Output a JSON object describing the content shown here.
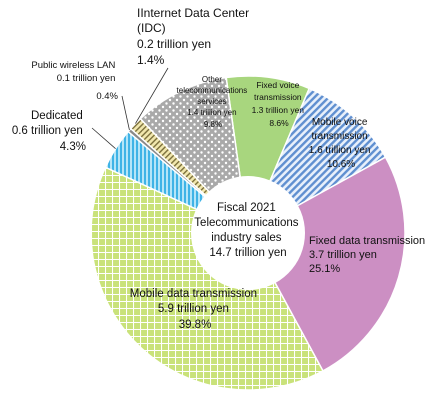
{
  "chart_data": {
    "type": "pie",
    "style": "donut",
    "center_label": [
      "Fiscal 2021",
      "Telecommunications",
      "industry sales",
      "14.7 trillion yen"
    ],
    "slices": [
      {
        "id": "fixed-voice",
        "lines": [
          "Fixed voice",
          "transmission",
          "1.3  trillion yen",
          "8.6%"
        ],
        "value": 8.6,
        "color": "#a8d67e"
      },
      {
        "id": "mobile-voice",
        "lines": [
          "Mobile voice",
          "transmission",
          "1.6  trillion yen",
          "10.6%"
        ],
        "value": 10.6,
        "color": "#8fb6e6",
        "pattern": "diagonal-lines"
      },
      {
        "id": "fixed-data",
        "lines": [
          "Fixed data transmission",
          "3.7  trillion yen",
          "25.1%"
        ],
        "value": 25.1,
        "color": "#cc8fc3"
      },
      {
        "id": "mobile-data",
        "lines": [
          "Mobile data transmission",
          "5.9  trillion yen",
          "39.8%"
        ],
        "value": 39.8,
        "color": "#c9e27a",
        "pattern": "grid"
      },
      {
        "id": "dedicated",
        "lines": [
          "Dedicated",
          "0.6 trillion yen",
          "4.3%"
        ],
        "value": 4.3,
        "color": "#86d4f2",
        "pattern": "vertical-lines"
      },
      {
        "id": "public-wireless-lan",
        "lines": [
          "Public wireless LAN",
          "0.1 trillion yen",
          "0.4%"
        ],
        "value": 0.4,
        "color": "#8a8a8a"
      },
      {
        "id": "idc",
        "lines": [
          "IInternet Data Center",
          "(IDC)",
          "0.2 trillion yen",
          "1.4%"
        ],
        "value": 1.4,
        "color": "#e9dc9a",
        "pattern": "hatch"
      },
      {
        "id": "other",
        "lines": [
          "Other",
          "telecommunications",
          "services",
          "1.4 trillion yen",
          "9.8%"
        ],
        "value": 9.8,
        "color": "#b0b0b0",
        "pattern": "dots"
      }
    ]
  }
}
